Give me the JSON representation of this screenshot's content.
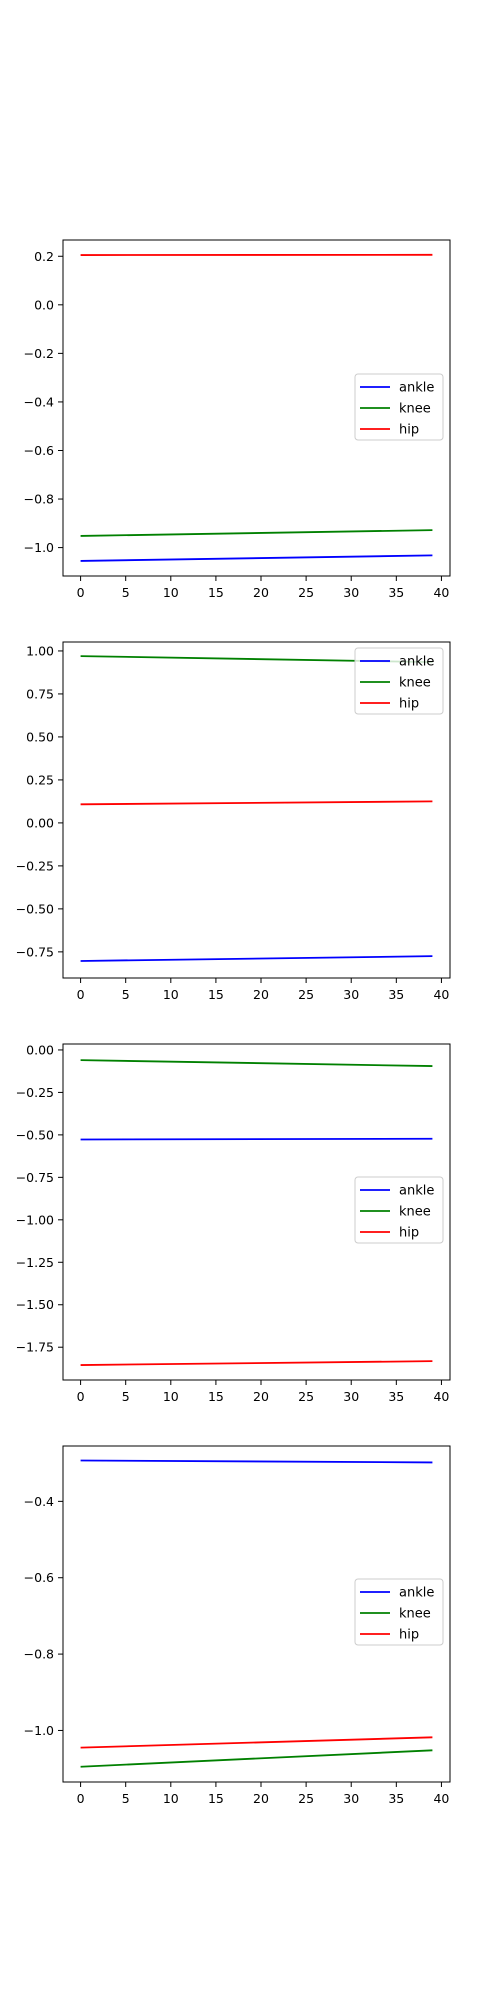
{
  "chart_data": [
    {
      "type": "line",
      "x": [
        0,
        39
      ],
      "xlim": [
        -1.95,
        40.95
      ],
      "xticks": [
        0,
        5,
        10,
        15,
        20,
        25,
        30,
        35,
        40
      ],
      "ylim": [
        -1.117,
        0.267
      ],
      "yticks": [
        0.2,
        0.0,
        -0.2,
        -0.4,
        -0.6,
        -0.8,
        -1.0
      ],
      "yticklabels": [
        "0.2",
        "0.0",
        "−0.2",
        "−0.4",
        "−0.6",
        "−0.8",
        "−1.0"
      ],
      "legend": "center-right",
      "grid": false,
      "series": [
        {
          "name": "ankle",
          "color": "#0000ff",
          "values": [
            -1.055,
            -1.032
          ]
        },
        {
          "name": "knee",
          "color": "#008000",
          "values": [
            -0.952,
            -0.928
          ]
        },
        {
          "name": "hip",
          "color": "#ff0000",
          "values": [
            0.205,
            0.206
          ]
        }
      ]
    },
    {
      "type": "line",
      "x": [
        0,
        39
      ],
      "xlim": [
        -1.95,
        40.95
      ],
      "xticks": [
        0,
        5,
        10,
        15,
        20,
        25,
        30,
        35,
        40
      ],
      "ylim": [
        -0.902,
        1.052
      ],
      "yticks": [
        1.0,
        0.75,
        0.5,
        0.25,
        0.0,
        -0.25,
        -0.5,
        -0.75
      ],
      "yticklabels": [
        "1.00",
        "0.75",
        "0.50",
        "0.25",
        "0.00",
        "−0.25",
        "−0.50",
        "−0.75"
      ],
      "legend": "upper right",
      "grid": false,
      "series": [
        {
          "name": "ankle",
          "color": "#0000ff",
          "values": [
            -0.803,
            -0.775
          ]
        },
        {
          "name": "knee",
          "color": "#008000",
          "values": [
            0.97,
            0.935
          ]
        },
        {
          "name": "hip",
          "color": "#ff0000",
          "values": [
            0.108,
            0.125
          ]
        }
      ]
    },
    {
      "type": "line",
      "x": [
        0,
        39
      ],
      "xlim": [
        -1.95,
        40.95
      ],
      "xticks": [
        0,
        5,
        10,
        15,
        20,
        25,
        30,
        35,
        40
      ],
      "ylim": [
        -1.943,
        0.035
      ],
      "yticks": [
        0.0,
        -0.25,
        -0.5,
        -0.75,
        -1.0,
        -1.25,
        -1.5,
        -1.75
      ],
      "yticklabels": [
        "0.00",
        "−0.25",
        "−0.50",
        "−0.75",
        "−1.00",
        "−1.25",
        "−1.50",
        "−1.75"
      ],
      "legend": "center-right",
      "grid": false,
      "series": [
        {
          "name": "ankle",
          "color": "#0000ff",
          "values": [
            -0.527,
            -0.523
          ]
        },
        {
          "name": "knee",
          "color": "#008000",
          "values": [
            -0.06,
            -0.095
          ]
        },
        {
          "name": "hip",
          "color": "#ff0000",
          "values": [
            -1.855,
            -1.832
          ]
        }
      ]
    },
    {
      "type": "line",
      "x": [
        0,
        39
      ],
      "xlim": [
        -1.95,
        40.95
      ],
      "xticks": [
        0,
        5,
        10,
        15,
        20,
        25,
        30,
        35,
        40
      ],
      "ylim": [
        -1.135,
        -0.255
      ],
      "yticks": [
        -0.4,
        -0.6,
        -0.8,
        -1.0
      ],
      "yticklabels": [
        "−0.4",
        "−0.6",
        "−0.8",
        "−1.0"
      ],
      "legend": "center-right",
      "grid": false,
      "series": [
        {
          "name": "ankle",
          "color": "#0000ff",
          "values": [
            -0.293,
            -0.298
          ]
        },
        {
          "name": "knee",
          "color": "#008000",
          "values": [
            -1.095,
            -1.052
          ]
        },
        {
          "name": "hip",
          "color": "#ff0000",
          "values": [
            -1.045,
            -1.018
          ]
        }
      ]
    }
  ]
}
